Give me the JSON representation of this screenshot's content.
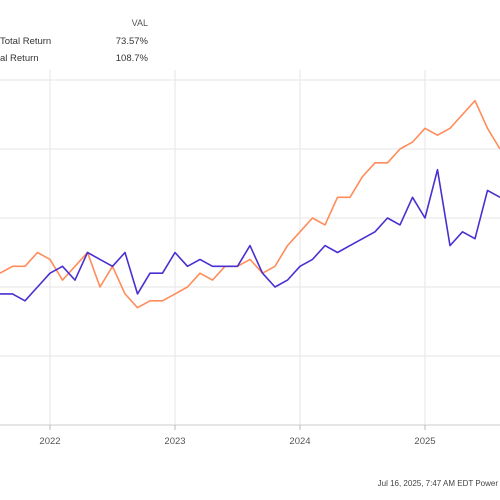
{
  "legend": {
    "value_header": "VAL",
    "rows": [
      {
        "name": "Total Return",
        "value": "73.57%",
        "color": "#ff8c5a"
      },
      {
        "name": "al Return",
        "value": "108.7%",
        "color": "#4a2fd0"
      }
    ]
  },
  "footer": "Jul 16, 2025, 7:47 AM EDT  Power",
  "chart_data": {
    "type": "line",
    "x_tick_labels": [
      "2022",
      "2023",
      "2024",
      "2025"
    ],
    "x_range": [
      2021.6,
      2025.6
    ],
    "y_range": [
      0,
      5
    ],
    "grid": true,
    "legend_position": "top-left",
    "series": [
      {
        "name": "Total Return",
        "color": "#ff8c5a",
        "x": [
          2021.6,
          2021.7,
          2021.8,
          2021.9,
          2022.0,
          2022.1,
          2022.2,
          2022.3,
          2022.4,
          2022.5,
          2022.6,
          2022.7,
          2022.8,
          2022.9,
          2023.0,
          2023.1,
          2023.2,
          2023.3,
          2023.4,
          2023.5,
          2023.6,
          2023.7,
          2023.8,
          2023.9,
          2024.0,
          2024.1,
          2024.2,
          2024.3,
          2024.4,
          2024.5,
          2024.6,
          2024.7,
          2024.8,
          2024.9,
          2025.0,
          2025.1,
          2025.2,
          2025.3,
          2025.4,
          2025.5,
          2025.6
        ],
        "y": [
          2.2,
          2.3,
          2.3,
          2.5,
          2.4,
          2.1,
          2.3,
          2.5,
          2.0,
          2.3,
          1.9,
          1.7,
          1.8,
          1.8,
          1.9,
          2.0,
          2.2,
          2.1,
          2.3,
          2.3,
          2.4,
          2.2,
          2.3,
          2.6,
          2.8,
          3.0,
          2.9,
          3.3,
          3.3,
          3.6,
          3.8,
          3.8,
          4.0,
          4.1,
          4.3,
          4.2,
          4.3,
          4.5,
          4.7,
          4.3,
          4.0
        ]
      },
      {
        "name": "al Return",
        "color": "#4a2fd0",
        "x": [
          2021.6,
          2021.7,
          2021.8,
          2021.9,
          2022.0,
          2022.1,
          2022.2,
          2022.3,
          2022.4,
          2022.5,
          2022.6,
          2022.7,
          2022.8,
          2022.9,
          2023.0,
          2023.1,
          2023.2,
          2023.3,
          2023.4,
          2023.5,
          2023.6,
          2023.7,
          2023.8,
          2023.9,
          2024.0,
          2024.1,
          2024.2,
          2024.3,
          2024.4,
          2024.5,
          2024.6,
          2024.7,
          2024.8,
          2024.9,
          2025.0,
          2025.1,
          2025.2,
          2025.3,
          2025.4,
          2025.5,
          2025.6
        ],
        "y": [
          1.9,
          1.9,
          1.8,
          2.0,
          2.2,
          2.3,
          2.1,
          2.5,
          2.4,
          2.3,
          2.5,
          1.9,
          2.2,
          2.2,
          2.5,
          2.3,
          2.4,
          2.3,
          2.3,
          2.3,
          2.6,
          2.2,
          2.0,
          2.1,
          2.3,
          2.4,
          2.6,
          2.5,
          2.6,
          2.7,
          2.8,
          3.0,
          2.9,
          3.3,
          3.0,
          3.7,
          2.6,
          2.8,
          2.7,
          3.4,
          3.3
        ]
      }
    ]
  }
}
